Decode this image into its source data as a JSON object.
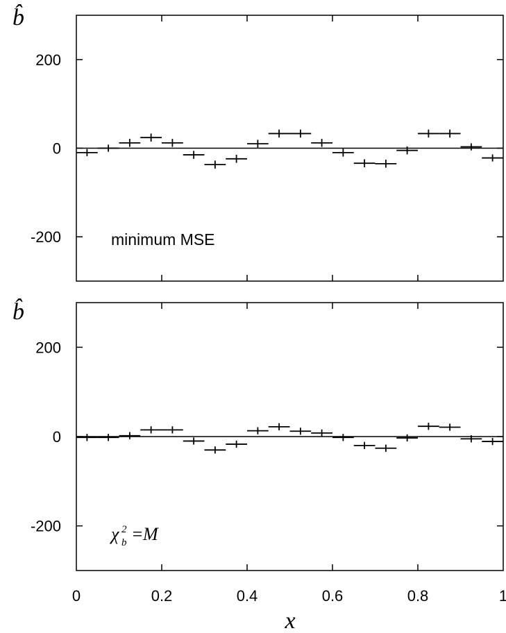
{
  "chart_data": [
    {
      "type": "scatter",
      "title": "",
      "ylabel": "b̂",
      "xlabel": "",
      "xlim": [
        0,
        1
      ],
      "ylim": [
        -300,
        300
      ],
      "yticks": [
        "200",
        "0",
        "-200"
      ],
      "xticks": [
        "0",
        "0.2",
        "0.4",
        "0.6",
        "0.8",
        "1"
      ],
      "show_x_tick_labels": false,
      "annotation": "minimum MSE",
      "bin_width": 0.05,
      "x": [
        0.025,
        0.075,
        0.125,
        0.175,
        0.225,
        0.275,
        0.325,
        0.375,
        0.425,
        0.475,
        0.525,
        0.575,
        0.625,
        0.675,
        0.725,
        0.775,
        0.825,
        0.875,
        0.925,
        0.975
      ],
      "values": [
        -10,
        0,
        12,
        24,
        12,
        -15,
        -37,
        -24,
        10,
        33,
        33,
        12,
        -10,
        -34,
        -35,
        -5,
        33,
        33,
        3,
        -22
      ],
      "error": [
        8,
        8,
        9,
        9,
        9,
        9,
        9,
        9,
        9,
        9,
        9,
        9,
        9,
        9,
        9,
        9,
        9,
        9,
        8,
        8
      ]
    },
    {
      "type": "scatter",
      "title": "",
      "ylabel": "b̂",
      "xlabel": "x",
      "xlim": [
        0,
        1
      ],
      "ylim": [
        -300,
        300
      ],
      "yticks": [
        "200",
        "0",
        "-200"
      ],
      "xticks": [
        "0",
        "0.2",
        "0.4",
        "0.6",
        "0.8",
        "1"
      ],
      "show_x_tick_labels": true,
      "annotation": "χ²_b = M",
      "bin_width": 0.05,
      "x": [
        0.025,
        0.075,
        0.125,
        0.175,
        0.225,
        0.275,
        0.325,
        0.375,
        0.425,
        0.475,
        0.525,
        0.575,
        0.625,
        0.675,
        0.725,
        0.775,
        0.825,
        0.875,
        0.925,
        0.975
      ],
      "values": [
        -2,
        -2,
        2,
        15,
        15,
        -10,
        -30,
        -17,
        13,
        22,
        12,
        8,
        -2,
        -20,
        -26,
        -3,
        23,
        21,
        -5,
        -11
      ],
      "error": [
        8,
        8,
        8,
        8,
        8,
        8,
        8,
        8,
        8,
        8,
        8,
        8,
        8,
        8,
        8,
        8,
        8,
        8,
        8,
        8
      ]
    }
  ]
}
